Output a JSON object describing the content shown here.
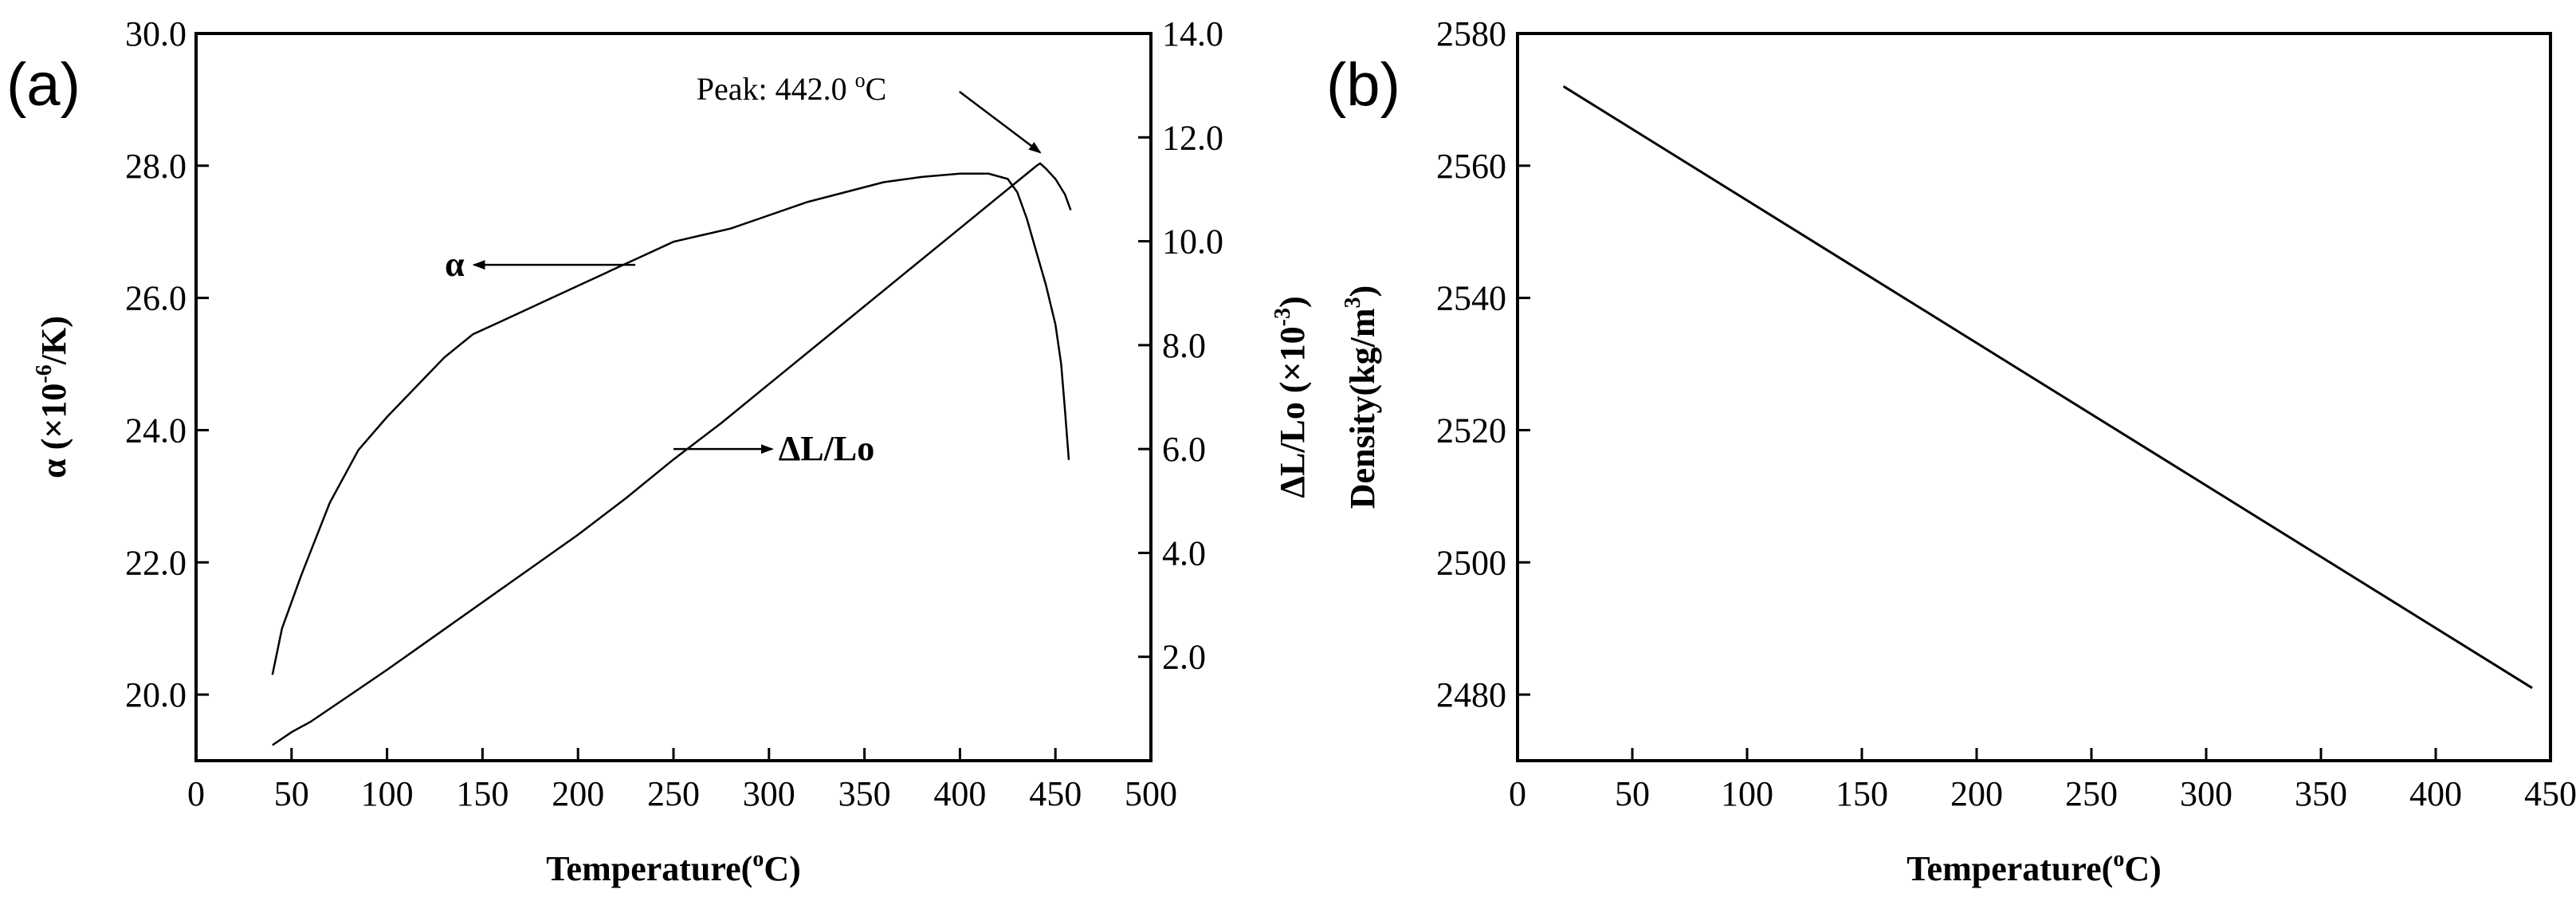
{
  "chart_data": [
    {
      "type": "line",
      "panel_label": "(a)",
      "xlabel": "Temperature(°C)",
      "xlabel_parts": [
        "Temperature(",
        "o",
        "C)"
      ],
      "ylabel": "α (×10⁻⁶/K)",
      "ylabel_parts": [
        "α (×10",
        "-6",
        "/K)"
      ],
      "y2label": "ΔL/Lo (×10⁻³)",
      "y2label_parts": [
        "ΔL/Lo (×10",
        "-3",
        ")"
      ],
      "xlim": [
        0,
        500
      ],
      "ylim": [
        19.0,
        30.0
      ],
      "y2lim": [
        0.0,
        14.0
      ],
      "xticks": [
        "0",
        "50",
        "100",
        "150",
        "200",
        "250",
        "300",
        "350",
        "400",
        "450",
        "500"
      ],
      "yticks": [
        "20.0",
        "22.0",
        "24.0",
        "26.0",
        "28.0",
        "30.0"
      ],
      "y2ticks": [
        "2.0",
        "4.0",
        "6.0",
        "8.0",
        "10.0",
        "12.0",
        "14.0"
      ],
      "series": [
        {
          "name": "α",
          "axis": "left",
          "x": [
            40,
            45,
            55,
            70,
            85,
            100,
            115,
            130,
            145,
            160,
            175,
            190,
            205,
            220,
            235,
            250,
            265,
            280,
            300,
            320,
            340,
            360,
            380,
            400,
            415,
            425,
            430,
            435,
            440,
            445,
            450,
            453,
            455,
            457
          ],
          "y": [
            20.3,
            21.0,
            21.8,
            22.9,
            23.7,
            24.2,
            24.65,
            25.1,
            25.45,
            25.65,
            25.85,
            26.05,
            26.25,
            26.45,
            26.65,
            26.85,
            26.95,
            27.05,
            27.25,
            27.45,
            27.6,
            27.75,
            27.83,
            27.88,
            27.88,
            27.8,
            27.6,
            27.2,
            26.7,
            26.2,
            25.6,
            25.0,
            24.3,
            23.55
          ]
        },
        {
          "name": "ΔL/Lo",
          "axis": "right",
          "x": [
            40,
            50,
            60,
            70,
            80,
            100,
            125,
            150,
            175,
            200,
            225,
            250,
            275,
            300,
            325,
            350,
            375,
            400,
            420,
            435,
            440,
            442,
            445,
            450,
            455,
            458
          ],
          "y": [
            0.3,
            0.55,
            0.75,
            1.0,
            1.25,
            1.75,
            2.4,
            3.05,
            3.7,
            4.35,
            5.05,
            5.8,
            6.5,
            7.25,
            8.0,
            8.75,
            9.5,
            10.25,
            10.85,
            11.3,
            11.45,
            11.5,
            11.4,
            11.2,
            10.9,
            10.6
          ]
        }
      ],
      "annotations": [
        {
          "text": "α",
          "x": 143,
          "y": 26.5,
          "axis": "left",
          "arrow_to": [
            230,
            26.5
          ]
        },
        {
          "text": "ΔL/Lo",
          "x": 305,
          "y": 6.0,
          "axis": "right",
          "arrow_from": [
            250,
            6.0
          ]
        },
        {
          "text_parts": [
            "Peak: 442.0 ",
            "o",
            "C"
          ],
          "text": "Peak: 442.0 °C",
          "x": 262,
          "y": 29.0,
          "axis": "left",
          "arrow_to": [
            442,
            28.2
          ]
        }
      ]
    },
    {
      "type": "line",
      "panel_label": "(b)",
      "xlabel": "Temperature(°C)",
      "xlabel_parts": [
        "Temperature(",
        "o",
        "C)"
      ],
      "ylabel": "Density(kg/m³)",
      "ylabel_parts": [
        "Density(kg/m",
        "3",
        ")"
      ],
      "xlim": [
        0,
        450
      ],
      "ylim": [
        2470,
        2580
      ],
      "xticks": [
        "0",
        "50",
        "100",
        "150",
        "200",
        "250",
        "300",
        "350",
        "400",
        "450"
      ],
      "yticks": [
        "2480",
        "2500",
        "2520",
        "2540",
        "2560",
        "2580"
      ],
      "series": [
        {
          "name": "Density",
          "x": [
            20,
            442
          ],
          "y": [
            2572,
            2481
          ]
        }
      ]
    }
  ]
}
